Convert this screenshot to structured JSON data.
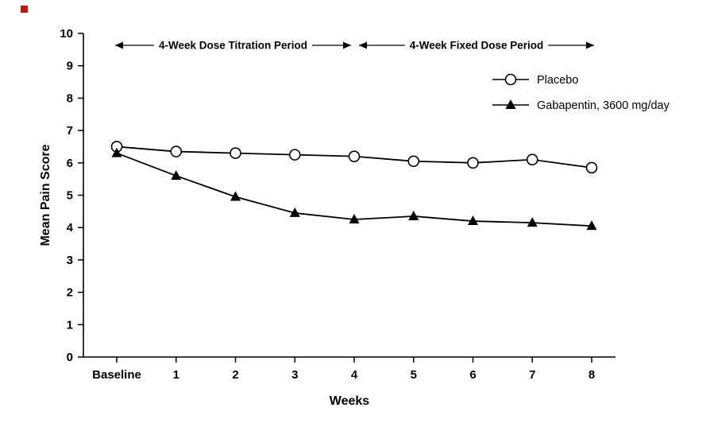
{
  "chart_data": {
    "type": "line",
    "title": "",
    "xlabel": "Weeks",
    "ylabel": "Mean Pain Score",
    "ylim": [
      0,
      10
    ],
    "yticks": [
      0,
      1,
      2,
      3,
      4,
      5,
      6,
      7,
      8,
      9,
      10
    ],
    "categories": [
      "Baseline",
      "1",
      "2",
      "3",
      "4",
      "5",
      "6",
      "7",
      "8"
    ],
    "series": [
      {
        "name": "Placebo",
        "marker": "circle-open",
        "color": "#000000",
        "values": [
          6.5,
          6.35,
          6.3,
          6.25,
          6.2,
          6.05,
          6.0,
          6.1,
          5.85
        ]
      },
      {
        "name": "Gabapentin, 3600 mg/day",
        "marker": "triangle-filled",
        "color": "#000000",
        "values": [
          6.3,
          5.6,
          4.95,
          4.45,
          4.25,
          4.35,
          4.2,
          4.15,
          4.05
        ]
      }
    ],
    "annotations": [
      {
        "text": "4-Week Dose Titration Period",
        "x_start": "Baseline",
        "x_end": "4"
      },
      {
        "text": "4-Week Fixed Dose Period",
        "x_start": "4",
        "x_end": "8"
      }
    ],
    "legend_position": "top-right",
    "grid": false
  },
  "colors": {
    "line": "#000000",
    "background": "#ffffff",
    "artifact_dot": "#cc1111"
  }
}
